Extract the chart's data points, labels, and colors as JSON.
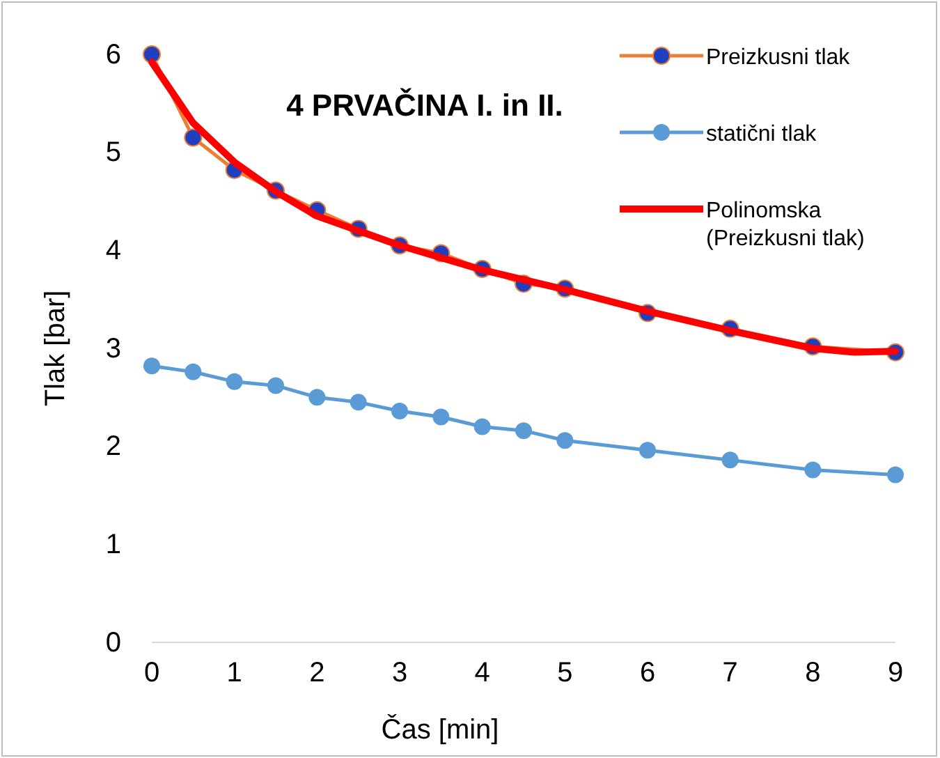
{
  "chart_data": {
    "type": "line",
    "title": "4 PRVAČINA  I. in II.",
    "xlabel": "Čas [min]",
    "ylabel": "Tlak [bar]",
    "x": [
      0,
      0.5,
      1,
      1.5,
      2,
      2.5,
      3,
      3.5,
      4,
      4.5,
      5,
      6,
      7,
      8,
      9
    ],
    "xlim": [
      0,
      9
    ],
    "xticks": [
      0,
      1,
      2,
      3,
      4,
      5,
      6,
      7,
      8,
      9
    ],
    "ylim": [
      0,
      6
    ],
    "yticks": [
      0,
      1,
      2,
      3,
      4,
      5,
      6
    ],
    "grid": false,
    "legend": "top right",
    "marker": "circle",
    "series": [
      {
        "name": "Preizkusni tlak",
        "color": "#ed7d31",
        "colors": [
          "#1f3fbf",
          "#1f3fbf",
          "#1f3fbf",
          "#1f3fbf",
          "#1f3fbf",
          "#1f3fbf",
          "#1f3fbf",
          "#1f3fbf",
          "#1f3fbf",
          "#1f3fbf",
          "#1f3fbf",
          "#1f3fbf",
          "#1f3fbf",
          "#1f3fbf",
          "#1f3fbf"
        ],
        "values": [
          6.0,
          5.15,
          4.82,
          4.61,
          4.41,
          4.22,
          4.05,
          3.97,
          3.81,
          3.66,
          3.61,
          3.36,
          3.2,
          3.02,
          2.96
        ]
      },
      {
        "name": "statični tlak",
        "color": "#5b9bd5",
        "values": [
          2.82,
          2.76,
          2.66,
          2.62,
          2.5,
          2.45,
          2.36,
          2.3,
          2.2,
          2.16,
          2.06,
          1.96,
          1.86,
          1.76,
          1.71
        ]
      },
      {
        "name": "Polinomska (Preizkusni tlak)",
        "type": "line",
        "marker": "none",
        "color": "#ff0000",
        "x": [
          0,
          0.5,
          1,
          1.5,
          2,
          3,
          4,
          5,
          6,
          7,
          8,
          8.5,
          9
        ],
        "values": [
          5.92,
          5.3,
          4.9,
          4.6,
          4.35,
          4.05,
          3.8,
          3.6,
          3.38,
          3.18,
          3.0,
          2.96,
          2.97
        ]
      }
    ]
  }
}
